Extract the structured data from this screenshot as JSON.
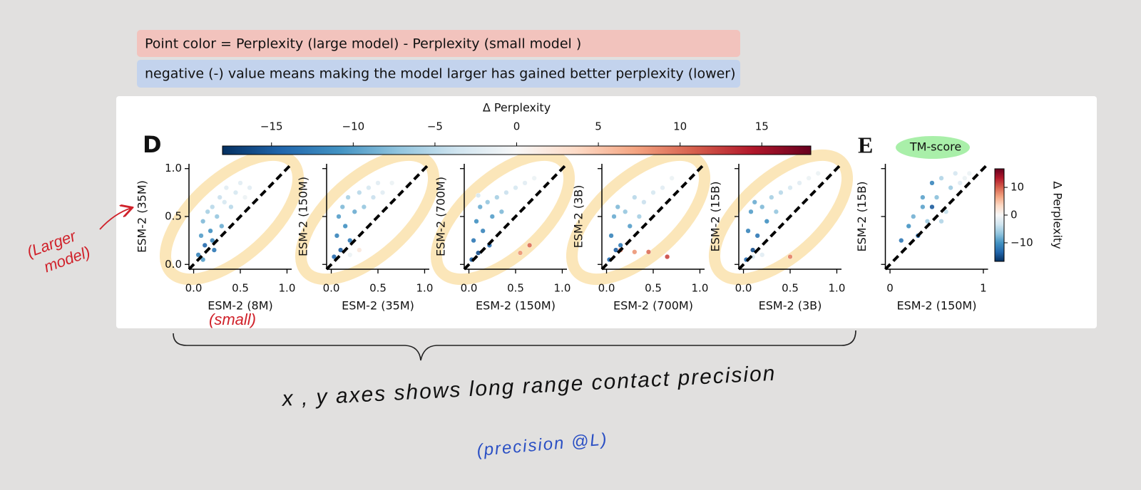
{
  "annotations": {
    "note_formula": "Point color = Perplexity (large model) - Perplexity (small model )",
    "note_sign": "negative (-) value means making the model larger has gained better perplexity (lower)",
    "panel_d": "D",
    "panel_e": "E",
    "highlight": "TM-score",
    "larger_model": [
      "(Larger",
      "model)"
    ],
    "small": "(small)",
    "axes_note": "x , y axes shows long range contact precision",
    "precision": "(precision @L)"
  },
  "chart_data": [
    {
      "type": "scatter",
      "xlabel": "ESM-2 (8M)",
      "ylabel": "ESM-2 (35M)",
      "xlim": [
        -0.05,
        1.05
      ],
      "ylim": [
        -0.05,
        1.05
      ],
      "xticks": [
        {
          "value": 0,
          "label": "0.0"
        },
        {
          "value": 0.5,
          "label": "0.5"
        },
        {
          "value": 1,
          "label": "1.0"
        }
      ],
      "yticks": [
        {
          "value": 0,
          "label": "0.0"
        },
        {
          "value": 0.5,
          "label": "0.5"
        },
        {
          "value": 1,
          "label": "1.0"
        }
      ],
      "diagonal": true,
      "x": [
        0.05,
        0.08,
        0.1,
        0.12,
        0.15,
        0.18,
        0.2,
        0.22,
        0.25,
        0.28,
        0.3,
        0.33,
        0.35,
        0.4,
        0.45,
        0.5,
        0.55,
        0.6,
        0.1,
        0.2
      ],
      "y": [
        0.1,
        0.3,
        0.45,
        0.2,
        0.55,
        0.35,
        0.6,
        0.15,
        0.5,
        0.7,
        0.4,
        0.65,
        0.8,
        0.6,
        0.75,
        0.85,
        0.7,
        0.8,
        0.05,
        0.25
      ],
      "c": [
        -12,
        -10,
        -8,
        -14,
        -6,
        -11,
        -5,
        -13,
        -7,
        -4,
        -9,
        -3,
        -2,
        -5,
        -3,
        -2,
        -1,
        -2,
        -10,
        -12
      ]
    },
    {
      "type": "scatter",
      "xlabel": "ESM-2 (35M)",
      "ylabel": "ESM-2 (150M)",
      "xlim": [
        -0.05,
        1.05
      ],
      "ylim": [
        -0.05,
        1.05
      ],
      "xticks": [
        {
          "value": 0,
          "label": "0.0"
        },
        {
          "value": 0.5,
          "label": "0.5"
        },
        {
          "value": 1,
          "label": "1.0"
        }
      ],
      "yticks": [
        0,
        0.5,
        1
      ],
      "show_yticklabels": false,
      "diagonal": true,
      "x": [
        0.03,
        0.06,
        0.08,
        0.1,
        0.12,
        0.15,
        0.18,
        0.2,
        0.25,
        0.3,
        0.35,
        0.4,
        0.45,
        0.5,
        0.55,
        0.65,
        0.3,
        0.2
      ],
      "y": [
        0.08,
        0.3,
        0.5,
        0.15,
        0.6,
        0.4,
        0.7,
        0.25,
        0.55,
        0.75,
        0.6,
        0.8,
        0.7,
        0.85,
        0.75,
        0.85,
        0.15,
        0.1
      ],
      "c": [
        -14,
        -12,
        -10,
        -15,
        -8,
        -11,
        -6,
        -13,
        -9,
        -5,
        -7,
        -3,
        -4,
        -2,
        -2,
        -1,
        2,
        -1
      ]
    },
    {
      "type": "scatter",
      "xlabel": "ESM-2 (150M)",
      "ylabel": "ESM-2 (700M)",
      "xlim": [
        -0.05,
        1.05
      ],
      "ylim": [
        -0.05,
        1.05
      ],
      "xticks": [
        {
          "value": 0,
          "label": "0.0"
        },
        {
          "value": 0.5,
          "label": "0.5"
        },
        {
          "value": 1,
          "label": "1.0"
        }
      ],
      "yticks": [
        0,
        0.5,
        1
      ],
      "show_yticklabels": false,
      "diagonal": true,
      "x": [
        0.03,
        0.05,
        0.08,
        0.1,
        0.12,
        0.15,
        0.2,
        0.22,
        0.25,
        0.3,
        0.35,
        0.4,
        0.5,
        0.6,
        0.7,
        0.55,
        0.65,
        0.1
      ],
      "y": [
        0.05,
        0.25,
        0.45,
        0.12,
        0.6,
        0.35,
        0.65,
        0.2,
        0.5,
        0.7,
        0.55,
        0.75,
        0.8,
        0.85,
        0.9,
        0.12,
        0.2,
        0.72
      ],
      "c": [
        -15,
        -13,
        -11,
        -16,
        -9,
        -12,
        -7,
        -14,
        -10,
        -6,
        -8,
        -4,
        -3,
        -2,
        -1,
        8,
        10,
        -3
      ]
    },
    {
      "type": "scatter",
      "xlabel": "ESM-2 (700M)",
      "ylabel": "ESM-2 (3B)",
      "xlim": [
        -0.05,
        1.05
      ],
      "ylim": [
        -0.05,
        1.05
      ],
      "xticks": [
        {
          "value": 0,
          "label": "0.0"
        },
        {
          "value": 0.5,
          "label": "0.5"
        },
        {
          "value": 1,
          "label": "1.0"
        }
      ],
      "yticks": [
        0,
        0.5,
        1
      ],
      "show_yticklabels": false,
      "diagonal": true,
      "x": [
        0.03,
        0.05,
        0.08,
        0.1,
        0.12,
        0.15,
        0.2,
        0.25,
        0.3,
        0.35,
        0.4,
        0.5,
        0.6,
        0.7,
        0.15,
        0.3,
        0.45,
        0.65
      ],
      "y": [
        0.05,
        0.3,
        0.5,
        0.15,
        0.6,
        0.2,
        0.55,
        0.4,
        0.7,
        0.5,
        0.65,
        0.75,
        0.8,
        0.9,
        0.15,
        0.13,
        0.13,
        0.08
      ],
      "c": [
        -14,
        -12,
        -9,
        -15,
        -8,
        -13,
        -7,
        -10,
        -5,
        -6,
        -4,
        -3,
        -2,
        -1,
        9,
        8,
        10,
        12
      ]
    },
    {
      "type": "scatter",
      "xlabel": "ESM-2 (3B)",
      "ylabel": "ESM-2 (15B)",
      "xlim": [
        -0.05,
        1.05
      ],
      "ylim": [
        -0.05,
        1.05
      ],
      "xticks": [
        {
          "value": 0,
          "label": "0.0"
        },
        {
          "value": 0.5,
          "label": "0.5"
        },
        {
          "value": 1,
          "label": "1.0"
        }
      ],
      "yticks": [
        0,
        0.5,
        1
      ],
      "show_yticklabels": false,
      "diagonal": true,
      "x": [
        0.03,
        0.05,
        0.08,
        0.1,
        0.12,
        0.15,
        0.2,
        0.25,
        0.3,
        0.35,
        0.4,
        0.5,
        0.6,
        0.7,
        0.8,
        0.5,
        0.2,
        0.1
      ],
      "y": [
        0.05,
        0.35,
        0.55,
        0.15,
        0.65,
        0.3,
        0.6,
        0.45,
        0.7,
        0.55,
        0.75,
        0.8,
        0.85,
        0.9,
        0.95,
        0.08,
        0.1,
        0.08
      ],
      "c": [
        -14,
        -12,
        -10,
        -16,
        -9,
        -13,
        -8,
        -11,
        -6,
        -7,
        -5,
        -3,
        -2,
        -1,
        -1,
        9,
        -2,
        -3
      ]
    },
    {
      "type": "scatter",
      "xlabel": "ESM-2 (150M)",
      "ylabel": "ESM-2 (15B)",
      "xlim": [
        -0.05,
        1.05
      ],
      "ylim": [
        -0.05,
        1.05
      ],
      "xticks": [
        0,
        1
      ],
      "yticks": [
        0,
        0.5,
        1
      ],
      "show_yticklabels": false,
      "diagonal": true,
      "x": [
        0.12,
        0.2,
        0.25,
        0.3,
        0.35,
        0.4,
        0.45,
        0.5,
        0.55,
        0.6,
        0.65,
        0.7,
        0.75,
        0.8,
        0.85,
        0.45,
        0.55,
        0.35
      ],
      "y": [
        0.25,
        0.4,
        0.5,
        0.3,
        0.6,
        0.45,
        0.85,
        0.7,
        0.9,
        0.55,
        0.8,
        0.95,
        0.85,
        0.9,
        0.95,
        0.6,
        0.45,
        0.7
      ],
      "c": [
        -12,
        -10,
        -8,
        -13,
        -9,
        -6,
        -11,
        -7,
        -5,
        -4,
        -6,
        -3,
        -2,
        -1,
        -1,
        -14,
        -5,
        -9
      ]
    },
    {
      "type": "colorbar",
      "orientation": "horizontal",
      "label": "Δ Perplexity",
      "colormap": "RdBu_r",
      "lim": [
        -18,
        18
      ],
      "ticks": [
        {
          "value": -15,
          "label": "−15"
        },
        {
          "value": -10,
          "label": "−10"
        },
        {
          "value": -5,
          "label": "−5"
        },
        0,
        5,
        10,
        15
      ]
    },
    {
      "type": "colorbar",
      "orientation": "vertical",
      "label": "Δ Perplexity",
      "colormap": "RdBu_r",
      "lim": [
        -16.7,
        16.7
      ],
      "ticks": [
        {
          "value": -10,
          "label": "−10"
        },
        0,
        10
      ]
    }
  ]
}
